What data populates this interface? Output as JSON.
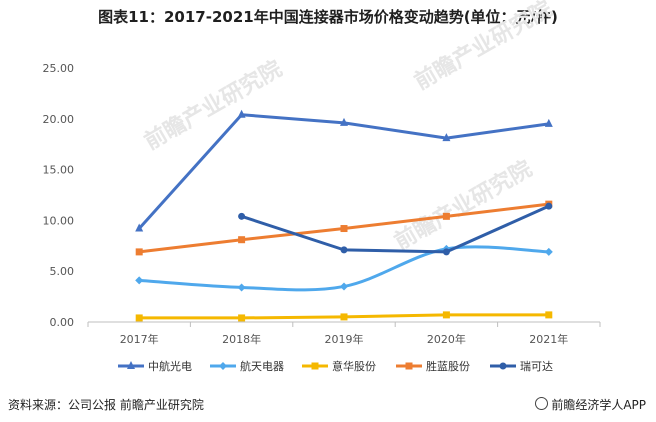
{
  "title": "图表11：2017-2021年中国连接器市场价格变动趋势(单位：元/件)",
  "source": "资料来源：公司公报 前瞻产业研究院",
  "brand": "前瞻经济学人APP",
  "watermarks": [
    "前瞻产业研究院",
    "前瞻产业研究院",
    "前瞻产业研究院"
  ],
  "colors": {
    "中航光电": "#4472C4",
    "航天电器": "#4FA8EC",
    "意华股份": "#F5B800",
    "胜蓝股份": "#ED7D31",
    "瑞可达": "#2F5EA8"
  },
  "chart_data": {
    "type": "line",
    "title": "图表11：2017-2021年中国连接器市场价格变动趋势(单位：元/件)",
    "xlabel": "",
    "ylabel": "",
    "categories": [
      "2017年",
      "2018年",
      "2019年",
      "2020年",
      "2021年"
    ],
    "yticks": [
      "0.00",
      "5.00",
      "10.00",
      "15.00",
      "20.00",
      "25.00"
    ],
    "ylim": [
      0,
      25
    ],
    "grid": false,
    "legend_position": "bottom",
    "series": [
      {
        "name": "中航光电",
        "marker": "triangle",
        "smooth": false,
        "values": [
          9.2,
          20.4,
          19.6,
          18.1,
          19.5
        ]
      },
      {
        "name": "航天电器",
        "marker": "diamond",
        "smooth": true,
        "values": [
          4.1,
          3.4,
          3.5,
          7.2,
          6.9
        ]
      },
      {
        "name": "意华股份",
        "marker": "square",
        "smooth": false,
        "values": [
          0.4,
          0.4,
          0.5,
          0.7,
          0.7
        ]
      },
      {
        "name": "胜蓝股份",
        "marker": "square",
        "smooth": false,
        "values": [
          6.9,
          8.1,
          9.2,
          10.4,
          11.6
        ]
      },
      {
        "name": "瑞可达",
        "marker": "circle",
        "smooth": false,
        "values": [
          null,
          10.4,
          7.1,
          6.9,
          11.4
        ]
      }
    ]
  }
}
